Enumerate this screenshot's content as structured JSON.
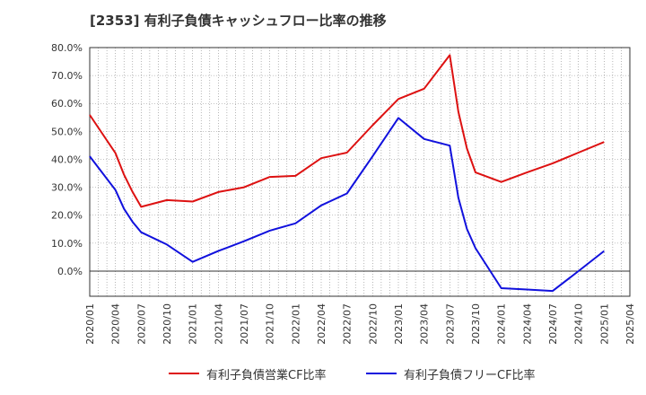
{
  "title": "[2353]  有利子負債キャッシュフロー比率の推移",
  "chart_data": {
    "type": "line",
    "title": "[2353]  有利子負債キャッシュフロー比率の推移",
    "xlabel": "",
    "ylabel": "",
    "ylim": [
      -9,
      80
    ],
    "y_ticks": [
      80,
      70,
      60,
      50,
      40,
      30,
      20,
      10,
      0
    ],
    "y_tick_labels": [
      "80.0%",
      "70.0%",
      "60.0%",
      "50.0%",
      "40.0%",
      "30.0%",
      "20.0%",
      "10.0%",
      "0.0%"
    ],
    "x_tick_labels": [
      "2020/01",
      "2020/04",
      "2020/07",
      "2020/10",
      "2021/01",
      "2021/04",
      "2021/07",
      "2021/10",
      "2022/01",
      "2022/04",
      "2022/07",
      "2022/10",
      "2023/01",
      "2023/04",
      "2023/07",
      "2023/10",
      "2024/01",
      "2024/04",
      "2024/07",
      "2024/10",
      "2025/01",
      "2025/04"
    ],
    "grid": true,
    "legend_position": "bottom",
    "series": [
      {
        "name": "有利子負債営業CF比率",
        "color": "#dd1111",
        "points": [
          [
            "2020/01",
            55.9
          ],
          [
            "2020/04",
            42.2
          ],
          [
            "2020/05",
            34.5
          ],
          [
            "2020/06",
            28.3
          ],
          [
            "2020/07",
            23.0
          ],
          [
            "2020/10",
            25.4
          ],
          [
            "2021/01",
            24.9
          ],
          [
            "2021/04",
            28.3
          ],
          [
            "2021/07",
            30.0
          ],
          [
            "2021/10",
            33.7
          ],
          [
            "2022/01",
            34.1
          ],
          [
            "2022/04",
            40.4
          ],
          [
            "2022/07",
            42.4
          ],
          [
            "2022/10",
            52.2
          ],
          [
            "2023/01",
            61.6
          ],
          [
            "2023/04",
            65.3
          ],
          [
            "2023/07",
            77.3
          ],
          [
            "2023/08",
            57.0
          ],
          [
            "2023/09",
            43.9
          ],
          [
            "2023/10",
            35.3
          ],
          [
            "2024/01",
            31.9
          ],
          [
            "2024/04",
            35.3
          ],
          [
            "2024/07",
            38.6
          ],
          [
            "2024/10",
            42.4
          ],
          [
            "2025/01",
            46.2
          ]
        ]
      },
      {
        "name": "有利子負債フリーCF比率",
        "color": "#1111dd",
        "points": [
          [
            "2020/01",
            41.1
          ],
          [
            "2020/04",
            29.0
          ],
          [
            "2020/05",
            22.3
          ],
          [
            "2020/06",
            17.6
          ],
          [
            "2020/07",
            13.9
          ],
          [
            "2020/10",
            9.5
          ],
          [
            "2021/01",
            3.3
          ],
          [
            "2021/04",
            7.2
          ],
          [
            "2021/07",
            10.7
          ],
          [
            "2021/10",
            14.5
          ],
          [
            "2022/01",
            17.1
          ],
          [
            "2022/04",
            23.5
          ],
          [
            "2022/07",
            27.8
          ],
          [
            "2022/10",
            41.1
          ],
          [
            "2023/01",
            54.8
          ],
          [
            "2023/04",
            47.3
          ],
          [
            "2023/07",
            44.9
          ],
          [
            "2023/08",
            26.2
          ],
          [
            "2023/09",
            15.1
          ],
          [
            "2023/10",
            8.2
          ],
          [
            "2024/01",
            -6.1
          ],
          [
            "2024/04",
            -6.6
          ],
          [
            "2024/07",
            -7.1
          ],
          [
            "2024/10",
            0.0
          ],
          [
            "2025/01",
            7.2
          ]
        ]
      }
    ]
  }
}
